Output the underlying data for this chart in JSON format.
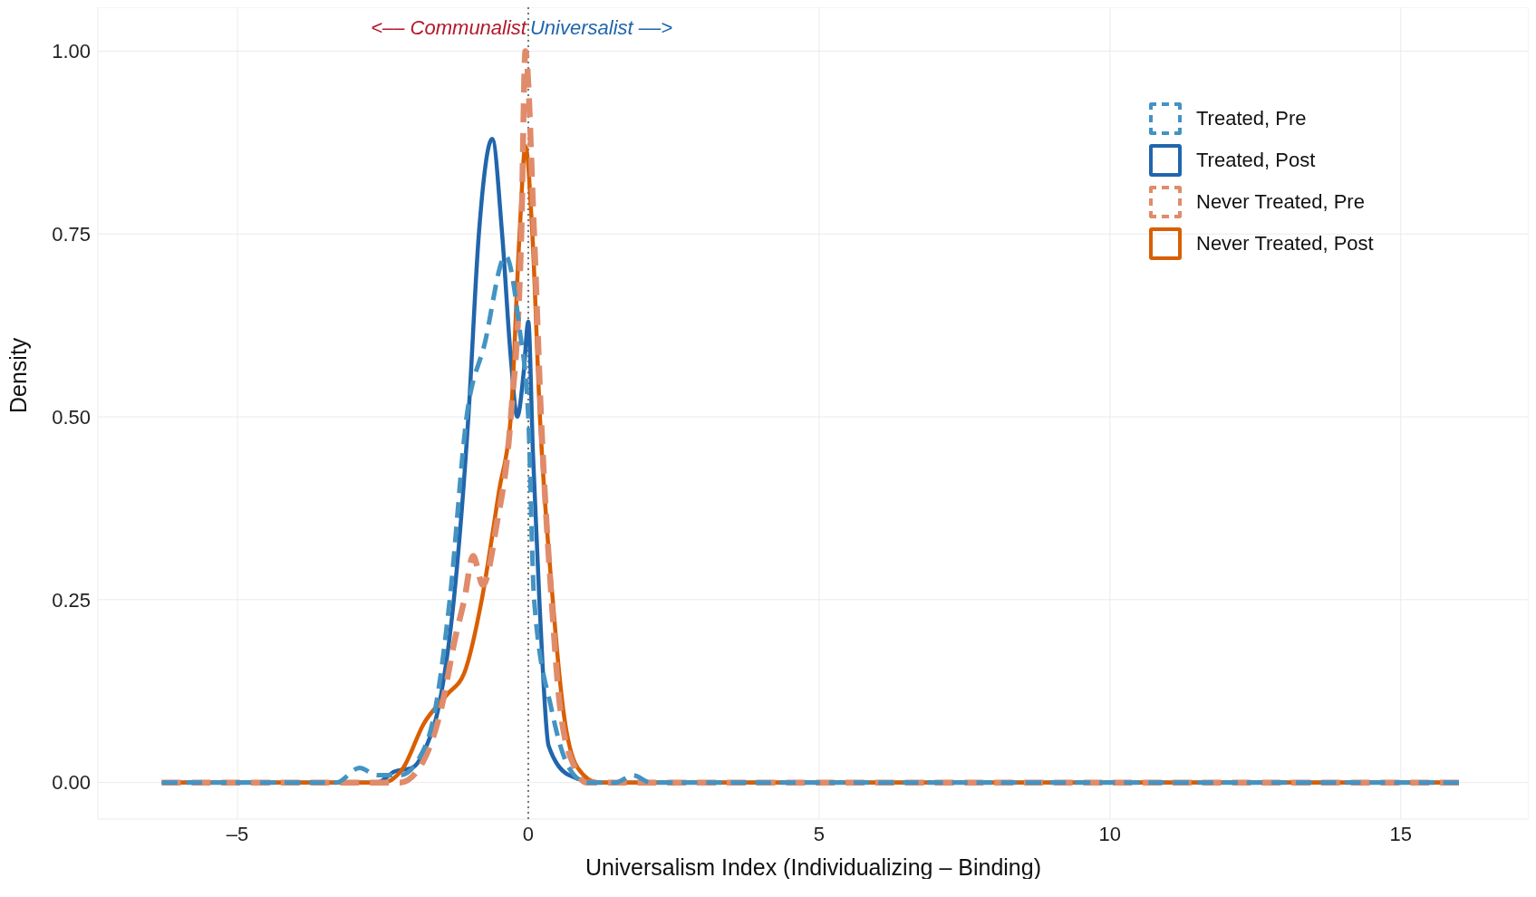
{
  "chart_data": {
    "type": "line",
    "xlabel": "Universalism Index (Individualizing – Binding)",
    "ylabel": "Density",
    "annotations": [
      "<–– Communalist",
      "Universalist ––>"
    ],
    "xlim": [
      -7.4,
      17.2
    ],
    "xticks": [
      {
        "value": -5,
        "label": "–5"
      },
      0,
      5,
      10,
      15
    ],
    "ylim": [
      -0.05,
      1.06
    ],
    "yticks": [
      {
        "value": 0,
        "label": "0.00"
      },
      {
        "value": 0.25,
        "label": "0.25"
      },
      {
        "value": 0.5,
        "label": "0.50"
      },
      {
        "value": 0.75,
        "label": "0.75"
      },
      {
        "value": 1,
        "label": "1.00"
      }
    ],
    "grid": true,
    "legend": "top right",
    "marker": "none",
    "ref_lines": [
      {
        "axis": "x",
        "value": 0,
        "color": "#777777",
        "line_style": "dotted"
      }
    ],
    "series": [
      {
        "name": "Treated, Pre",
        "color": "#4393c3",
        "line_style": "dashed",
        "x": [
          -6.3,
          -4,
          -3.3,
          -2.9,
          -2.6,
          -2.2,
          -1.9,
          -1.6,
          -1.35,
          -1.06,
          -0.75,
          -0.39,
          -0.15,
          0,
          0.1,
          0.4,
          0.7,
          1,
          1.5,
          1.8,
          2.1,
          3,
          16
        ],
        "values": [
          0,
          0,
          0,
          0.02,
          0.01,
          0.01,
          0.03,
          0.1,
          0.25,
          0.5,
          0.6,
          0.72,
          0.62,
          0.5,
          0.25,
          0.1,
          0.02,
          0,
          0,
          0.01,
          0,
          0,
          0
        ]
      },
      {
        "name": "Treated, Post",
        "color": "#2166ac",
        "line_style": "solid",
        "x": [
          -6.3,
          -4,
          -2.6,
          -2.3,
          -2,
          -1.75,
          -1.55,
          -1.28,
          -1.03,
          -0.85,
          -0.62,
          -0.45,
          -0.3,
          -0.19,
          -0.08,
          0,
          0.08,
          0.19,
          0.35,
          0.7,
          1.2,
          4.3,
          16
        ],
        "values": [
          0,
          0,
          0,
          0.015,
          0.02,
          0.05,
          0.1,
          0.25,
          0.5,
          0.75,
          0.88,
          0.75,
          0.58,
          0.5,
          0.56,
          0.63,
          0.45,
          0.25,
          0.05,
          0.01,
          0,
          0,
          0
        ]
      },
      {
        "name": "Never Treated, Pre",
        "color": "#e08b6a",
        "line_style": "dashed",
        "x": [
          -6.3,
          -2.2,
          -1.8,
          -1.5,
          -1.25,
          -1.1,
          -0.95,
          -0.78,
          -0.55,
          -0.3,
          -0.12,
          -0.05,
          0.1,
          0.22,
          0.4,
          0.55,
          0.8,
          1,
          16
        ],
        "values": [
          0,
          0,
          0.03,
          0.1,
          0.2,
          0.25,
          0.31,
          0.27,
          0.35,
          0.5,
          0.75,
          1,
          0.75,
          0.5,
          0.25,
          0.1,
          0.02,
          0,
          0
        ]
      },
      {
        "name": "Never Treated, Post",
        "color": "#d95f02",
        "line_style": "solid",
        "x": [
          -6.3,
          -2.5,
          -2.15,
          -1.8,
          -1.4,
          -1.1,
          -0.8,
          -0.5,
          -0.3,
          -0.15,
          -0.05,
          0.07,
          0.2,
          0.42,
          0.6,
          0.85,
          1.2,
          16
        ],
        "values": [
          0,
          0,
          0.02,
          0.08,
          0.12,
          0.15,
          0.25,
          0.4,
          0.5,
          0.75,
          0.87,
          0.75,
          0.5,
          0.25,
          0.1,
          0.02,
          0,
          0
        ]
      }
    ]
  }
}
